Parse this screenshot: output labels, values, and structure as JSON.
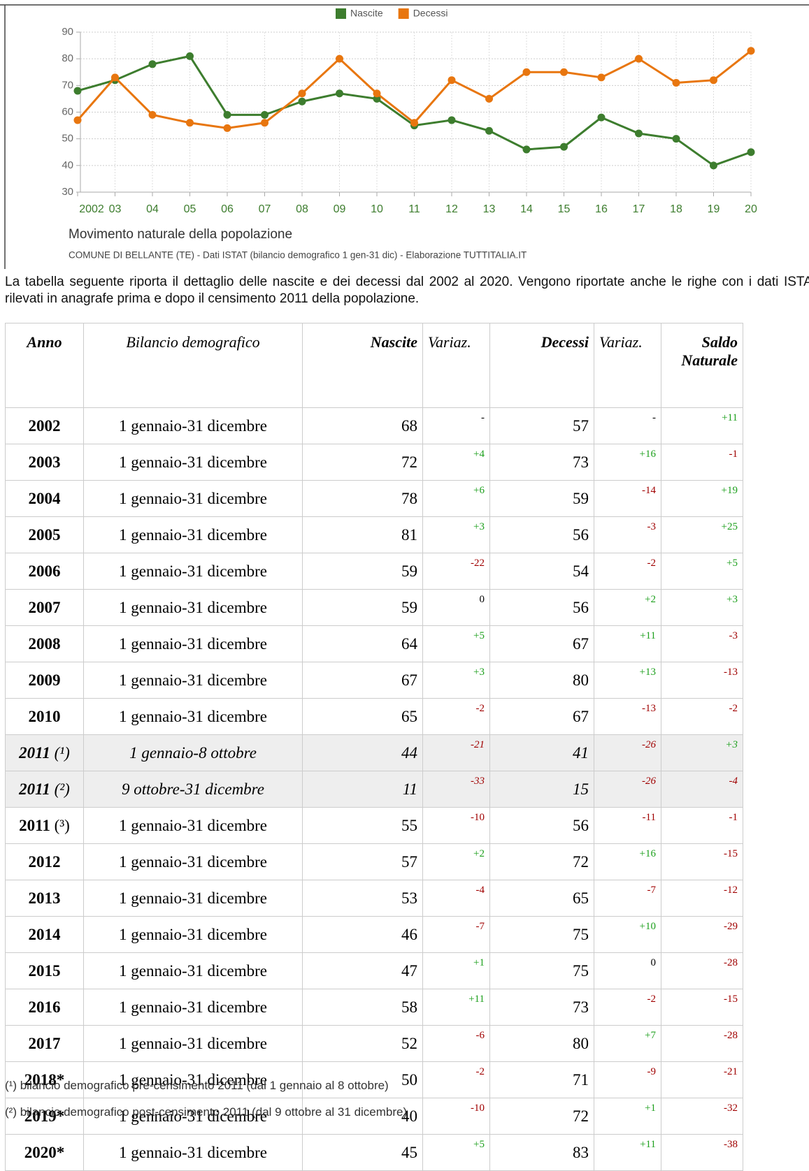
{
  "chart_data": {
    "type": "line",
    "title": "Movimento naturale della popolazione",
    "source": "COMUNE DI BELLANTE (TE) - Dati ISTAT (bilancio demografico 1 gen-31 dic) - Elaborazione TUTTITALIA.IT",
    "categories": [
      "2002",
      "03",
      "04",
      "05",
      "06",
      "07",
      "08",
      "09",
      "10",
      "11",
      "12",
      "13",
      "14",
      "15",
      "16",
      "17",
      "18",
      "19",
      "20"
    ],
    "series": [
      {
        "name": "Nascite",
        "color": "#3d7d2e",
        "values": [
          68,
          72,
          78,
          81,
          59,
          59,
          64,
          67,
          65,
          55,
          57,
          53,
          46,
          47,
          58,
          52,
          50,
          40,
          45
        ]
      },
      {
        "name": "Decessi",
        "color": "#e8760f",
        "values": [
          57,
          73,
          59,
          56,
          54,
          56,
          67,
          80,
          67,
          56,
          72,
          65,
          75,
          75,
          73,
          80,
          71,
          72,
          83
        ]
      }
    ],
    "ylim": [
      30,
      90
    ],
    "yticks": [
      30,
      40,
      50,
      60,
      70,
      80,
      90
    ],
    "grid": true,
    "legend": "top"
  },
  "paragraph": "La tabella seguente riporta il dettaglio delle nascite e dei decessi dal 2002 al 2020. Vengono riportate anche le righe con i dati ISTAT rilevati in anagrafe prima e dopo il censimento 2011 della popolazione.",
  "table": {
    "headers": [
      "Anno",
      "Bilancio demografico",
      "Nascite",
      "Variaz.",
      "Decessi",
      "Variaz.",
      "Saldo Naturale"
    ],
    "rows": [
      {
        "anno": "2002",
        "periodo": "1 gennaio-31 dicembre",
        "nascite": 68,
        "var_nascite": "-",
        "decessi": 57,
        "var_decessi": "-",
        "saldo": "+11"
      },
      {
        "anno": "2003",
        "periodo": "1 gennaio-31 dicembre",
        "nascite": 72,
        "var_nascite": "+4",
        "decessi": 73,
        "var_decessi": "+16",
        "saldo": "-1"
      },
      {
        "anno": "2004",
        "periodo": "1 gennaio-31 dicembre",
        "nascite": 78,
        "var_nascite": "+6",
        "decessi": 59,
        "var_decessi": "-14",
        "saldo": "+19"
      },
      {
        "anno": "2005",
        "periodo": "1 gennaio-31 dicembre",
        "nascite": 81,
        "var_nascite": "+3",
        "decessi": 56,
        "var_decessi": "-3",
        "saldo": "+25"
      },
      {
        "anno": "2006",
        "periodo": "1 gennaio-31 dicembre",
        "nascite": 59,
        "var_nascite": "-22",
        "decessi": 54,
        "var_decessi": "-2",
        "saldo": "+5"
      },
      {
        "anno": "2007",
        "periodo": "1 gennaio-31 dicembre",
        "nascite": 59,
        "var_nascite": "0",
        "decessi": 56,
        "var_decessi": "+2",
        "saldo": "+3"
      },
      {
        "anno": "2008",
        "periodo": "1 gennaio-31 dicembre",
        "nascite": 64,
        "var_nascite": "+5",
        "decessi": 67,
        "var_decessi": "+11",
        "saldo": "-3"
      },
      {
        "anno": "2009",
        "periodo": "1 gennaio-31 dicembre",
        "nascite": 67,
        "var_nascite": "+3",
        "decessi": 80,
        "var_decessi": "+13",
        "saldo": "-13"
      },
      {
        "anno": "2010",
        "periodo": "1 gennaio-31 dicembre",
        "nascite": 65,
        "var_nascite": "-2",
        "decessi": 67,
        "var_decessi": "-13",
        "saldo": "-2"
      },
      {
        "anno": "2011",
        "nota": "(¹)",
        "periodo": "1 gennaio-8 ottobre",
        "nascite": 44,
        "var_nascite": "-21",
        "decessi": 41,
        "var_decessi": "-26",
        "saldo": "+3"
      },
      {
        "anno": "2011",
        "nota": "(²)",
        "periodo": "9 ottobre-31 dicembre",
        "nascite": 11,
        "var_nascite": "-33",
        "decessi": 15,
        "var_decessi": "-26",
        "saldo": "-4"
      },
      {
        "anno": "2011",
        "nota": "(³)",
        "periodo": "1 gennaio-31 dicembre",
        "nascite": 55,
        "var_nascite": "-10",
        "decessi": 56,
        "var_decessi": "-11",
        "saldo": "-1"
      },
      {
        "anno": "2012",
        "periodo": "1 gennaio-31 dicembre",
        "nascite": 57,
        "var_nascite": "+2",
        "decessi": 72,
        "var_decessi": "+16",
        "saldo": "-15"
      },
      {
        "anno": "2013",
        "periodo": "1 gennaio-31 dicembre",
        "nascite": 53,
        "var_nascite": "-4",
        "decessi": 65,
        "var_decessi": "-7",
        "saldo": "-12"
      },
      {
        "anno": "2014",
        "periodo": "1 gennaio-31 dicembre",
        "nascite": 46,
        "var_nascite": "-7",
        "decessi": 75,
        "var_decessi": "+10",
        "saldo": "-29"
      },
      {
        "anno": "2015",
        "periodo": "1 gennaio-31 dicembre",
        "nascite": 47,
        "var_nascite": "+1",
        "decessi": 75,
        "var_decessi": "0",
        "saldo": "-28"
      },
      {
        "anno": "2016",
        "periodo": "1 gennaio-31 dicembre",
        "nascite": 58,
        "var_nascite": "+11",
        "decessi": 73,
        "var_decessi": "-2",
        "saldo": "-15"
      },
      {
        "anno": "2017",
        "periodo": "1 gennaio-31 dicembre",
        "nascite": 52,
        "var_nascite": "-6",
        "decessi": 80,
        "var_decessi": "+7",
        "saldo": "-28"
      },
      {
        "anno": "2018*",
        "periodo": "1 gennaio-31 dicembre",
        "nascite": 50,
        "var_nascite": "-2",
        "decessi": 71,
        "var_decessi": "-9",
        "saldo": "-21"
      },
      {
        "anno": "2019*",
        "periodo": "1 gennaio-31 dicembre",
        "nascite": 40,
        "var_nascite": "-10",
        "decessi": 72,
        "var_decessi": "+1",
        "saldo": "-32"
      },
      {
        "anno": "2020*",
        "periodo": "1 gennaio-31 dicembre",
        "nascite": 45,
        "var_nascite": "+5",
        "decessi": 83,
        "var_decessi": "+11",
        "saldo": "-38"
      }
    ]
  },
  "footnotes": [
    "(¹) bilancio demografico pre-censimento 2011 (dal 1 gennaio al 8 ottobre)",
    "(²) bilancio demografico post-censimento 2011 (dal 9 ottobre al 31 dicembre)"
  ]
}
